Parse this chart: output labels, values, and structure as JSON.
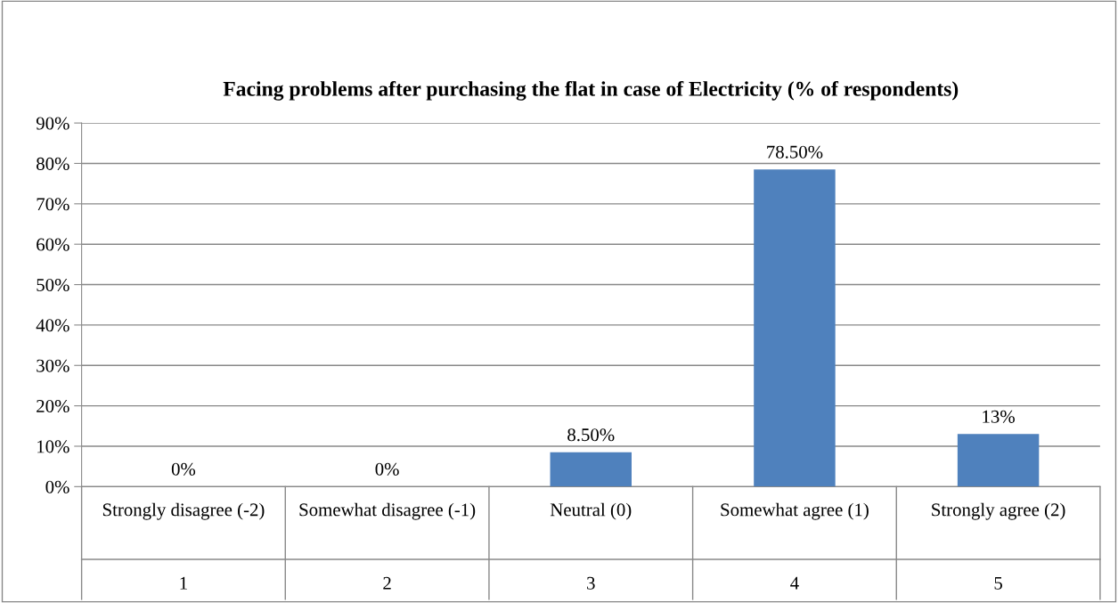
{
  "chart_data": {
    "type": "bar",
    "title": "Facing problems after purchasing the flat in case of Electricity (% of respondents)",
    "categories": [
      "Strongly disagree (-2)",
      "Somewhat disagree (-1)",
      "Neutral (0)",
      "Somewhat agree (1)",
      "Strongly agree (2)"
    ],
    "values": [
      0,
      0,
      8.5,
      78.5,
      13
    ],
    "color": "#4f81bd",
    "value_labels": [
      "0%",
      "0%",
      "8.50%",
      "78.50%",
      "13%"
    ],
    "annotations": [
      "1",
      "2",
      "3",
      "4",
      "5"
    ],
    "ylim": [
      0,
      90
    ],
    "yticks": [
      {
        "value": 0,
        "label": "0%"
      },
      {
        "value": 10,
        "label": "10%"
      },
      {
        "value": 20,
        "label": "20%"
      },
      {
        "value": 30,
        "label": "30%"
      },
      {
        "value": 40,
        "label": "40%"
      },
      {
        "value": 50,
        "label": "50%"
      },
      {
        "value": 60,
        "label": "60%"
      },
      {
        "value": 70,
        "label": "70%"
      },
      {
        "value": 80,
        "label": "80%"
      },
      {
        "value": 90,
        "label": "90%"
      }
    ],
    "grid": "y",
    "legend": false
  }
}
